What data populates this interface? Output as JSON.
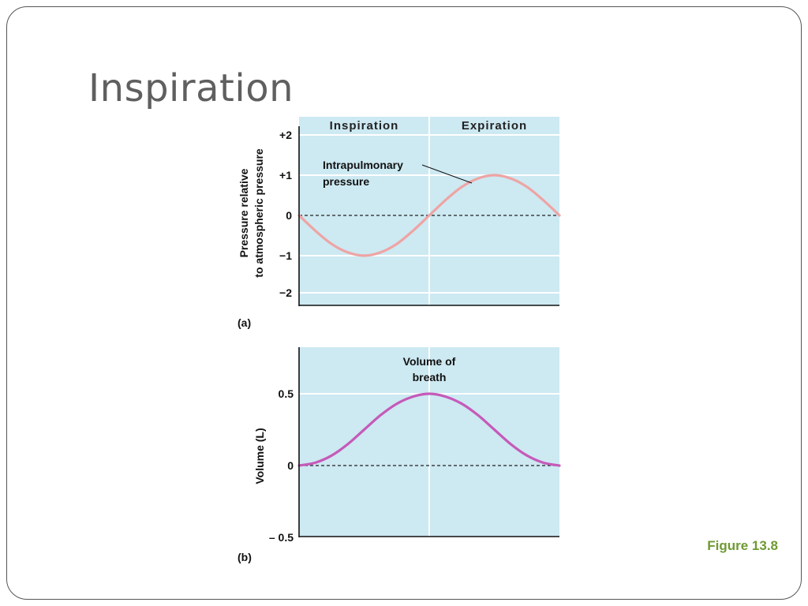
{
  "slide": {
    "title": "Inspiration",
    "caption": "Figure 13.8"
  },
  "colors": {
    "panel_bg": "#cde9f2",
    "grid": "#ffffff",
    "pressure_curve": "#eea4a4",
    "volume_curve": "#c55ab9",
    "caption": "#6f9a32",
    "title": "#5f5f5f"
  },
  "chart_data": [
    {
      "type": "line",
      "panel_label": "(a)",
      "phase_labels": [
        "Inspiration",
        "Expiration"
      ],
      "ylabel": [
        "Pressure relative",
        "to atmospheric pressure"
      ],
      "yticks": [
        "+2",
        "+1",
        "0",
        "−1",
        "−2"
      ],
      "ylim": [
        -2.3,
        2.3
      ],
      "xlim": [
        0,
        4
      ],
      "grid": true,
      "reference_line": 0,
      "series": [
        {
          "name": "Intrapulmonary pressure",
          "label_lines": [
            "Intrapulmonary",
            "pressure"
          ],
          "x": [
            0,
            0.25,
            0.5,
            0.75,
            1,
            1.25,
            1.5,
            1.75,
            2,
            2.25,
            2.5,
            2.75,
            3,
            3.25,
            3.5,
            3.75,
            4
          ],
          "y": [
            0,
            -0.38,
            -0.71,
            -0.92,
            -1,
            -0.92,
            -0.71,
            -0.38,
            0,
            0.38,
            0.71,
            0.92,
            1,
            0.92,
            0.71,
            0.38,
            0
          ]
        }
      ]
    },
    {
      "type": "line",
      "panel_label": "(b)",
      "ylabel": "Volume (L)",
      "yticks": [
        "0.5",
        "0",
        "– 0.5"
      ],
      "ylim": [
        -0.5,
        0.8
      ],
      "xlim": [
        0,
        4
      ],
      "grid": true,
      "reference_line": 0,
      "series": [
        {
          "name": "Volume of breath",
          "label_lines": [
            "Volume of",
            "breath"
          ],
          "x": [
            0,
            0.25,
            0.5,
            0.75,
            1,
            1.25,
            1.5,
            1.75,
            2,
            2.25,
            2.5,
            2.75,
            3,
            3.25,
            3.5,
            3.75,
            4
          ],
          "y": [
            0,
            0.02,
            0.07,
            0.15,
            0.25,
            0.35,
            0.43,
            0.48,
            0.5,
            0.48,
            0.43,
            0.35,
            0.25,
            0.15,
            0.07,
            0.02,
            0
          ]
        }
      ]
    }
  ]
}
